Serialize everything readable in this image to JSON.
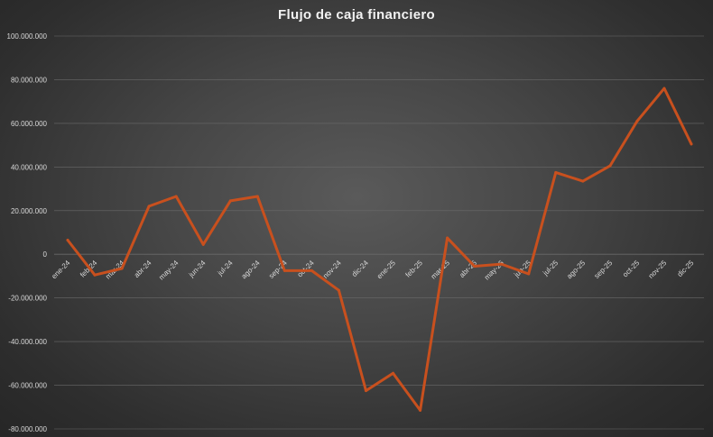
{
  "chart_data": {
    "type": "line",
    "title": "Flujo de caja financiero",
    "xlabel": "",
    "ylabel": "",
    "categories": [
      "ene-24",
      "feb-24",
      "mar-24",
      "abr-24",
      "may-24",
      "jun-24",
      "jul-24",
      "ago-24",
      "sep-24",
      "oct-24",
      "nov-24",
      "dic-24",
      "ene-25",
      "feb-25",
      "mar-25",
      "abr-25",
      "may-25",
      "jun-25",
      "jul-25",
      "ago-25",
      "sep-25",
      "oct-25",
      "nov-25",
      "dic-25"
    ],
    "series": [
      {
        "values": [
          6500000,
          -9500000,
          -6500000,
          22000000,
          26500000,
          4500000,
          24500000,
          26500000,
          -7500000,
          -7500000,
          -16500000,
          -62500000,
          -54500000,
          -71500000,
          7500000,
          -5500000,
          -4500000,
          -9000000,
          37500000,
          33500000,
          40500000,
          61000000,
          76000000,
          50500000
        ],
        "color": "#c8501e"
      }
    ],
    "ylim": [
      -80000000,
      100000000
    ],
    "yticks": [
      100000000,
      80000000,
      60000000,
      40000000,
      20000000,
      0,
      -20000000,
      -40000000,
      -60000000,
      -80000000
    ],
    "ytick_labels": [
      "100.000.000",
      "80.000.000",
      "60.000.000",
      "40.000.000",
      "20.000.000",
      "0",
      "-20.000.000",
      "-40.000.000",
      "-60.000.000",
      "-80.000.000"
    ],
    "grid": true,
    "legend": "none",
    "colors": {
      "line": "#c8501e",
      "gridline": "#6a6a6a",
      "text": "#d9d9d9"
    }
  }
}
